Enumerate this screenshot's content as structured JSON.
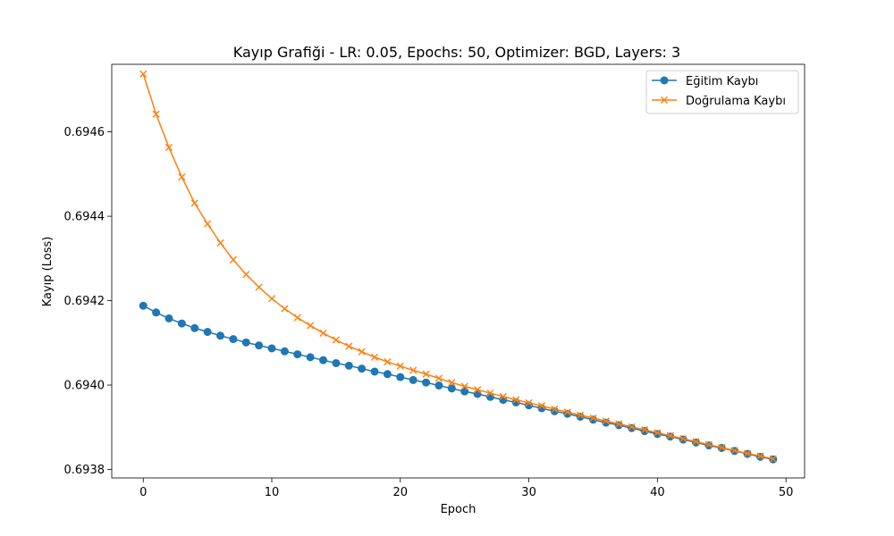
{
  "chart_data": {
    "type": "line",
    "title": "Kayıp Grafiği - LR: 0.05, Epochs: 50, Optimizer: BGD, Layers: 3",
    "xlabel": "Epoch",
    "ylabel": "Kayıp (Loss)",
    "xlim": [
      -2.45,
      51.45
    ],
    "ylim": [
      0.69378,
      0.69476
    ],
    "x_ticks": [
      0,
      10,
      20,
      30,
      40,
      50
    ],
    "x_tick_labels": [
      "0",
      "10",
      "20",
      "30",
      "40",
      "50"
    ],
    "y_ticks": [
      0.6938,
      0.694,
      0.6942,
      0.6944,
      0.6946
    ],
    "y_tick_labels": [
      "0.6938",
      "0.6940",
      "0.6942",
      "0.6944",
      "0.6946"
    ],
    "grid": false,
    "legend_position": "upper right",
    "x": [
      0,
      1,
      2,
      3,
      4,
      5,
      6,
      7,
      8,
      9,
      10,
      11,
      12,
      13,
      14,
      15,
      16,
      17,
      18,
      19,
      20,
      21,
      22,
      23,
      24,
      25,
      26,
      27,
      28,
      29,
      30,
      31,
      32,
      33,
      34,
      35,
      36,
      37,
      38,
      39,
      40,
      41,
      42,
      43,
      44,
      45,
      46,
      47,
      48,
      49
    ],
    "series": [
      {
        "name": "Eğitim Kaybı",
        "color": "#1f77b4",
        "marker": "circle",
        "values": [
          0.694188,
          0.694172,
          0.694158,
          0.694146,
          0.694135,
          0.694126,
          0.694117,
          0.694109,
          0.694101,
          0.694094,
          0.694087,
          0.69408,
          0.694073,
          0.694066,
          0.694059,
          0.694052,
          0.694046,
          0.694039,
          0.694032,
          0.694026,
          0.694019,
          0.694012,
          0.694006,
          0.693999,
          0.693992,
          0.693985,
          0.693979,
          0.693972,
          0.693965,
          0.693959,
          0.693952,
          0.693945,
          0.693938,
          0.693932,
          0.693925,
          0.693918,
          0.693911,
          0.693905,
          0.693898,
          0.693891,
          0.693884,
          0.693878,
          0.693871,
          0.693864,
          0.693857,
          0.693851,
          0.693844,
          0.693837,
          0.69383,
          0.693824
        ]
      },
      {
        "name": "Doğrulama Kaybı",
        "color": "#ff7f0e",
        "marker": "x",
        "values": [
          0.694737,
          0.694642,
          0.694563,
          0.694493,
          0.694431,
          0.694382,
          0.694337,
          0.694297,
          0.694262,
          0.694232,
          0.694205,
          0.694181,
          0.69416,
          0.694141,
          0.694123,
          0.694107,
          0.694092,
          0.694079,
          0.694066,
          0.694055,
          0.694045,
          0.694035,
          0.694026,
          0.694016,
          0.694006,
          0.693997,
          0.693989,
          0.693981,
          0.693973,
          0.693965,
          0.693958,
          0.693951,
          0.693943,
          0.693936,
          0.693929,
          0.693922,
          0.693915,
          0.693908,
          0.693901,
          0.693894,
          0.693887,
          0.69388,
          0.693873,
          0.693866,
          0.693859,
          0.693852,
          0.693845,
          0.693838,
          0.693832,
          0.693825
        ]
      }
    ]
  }
}
